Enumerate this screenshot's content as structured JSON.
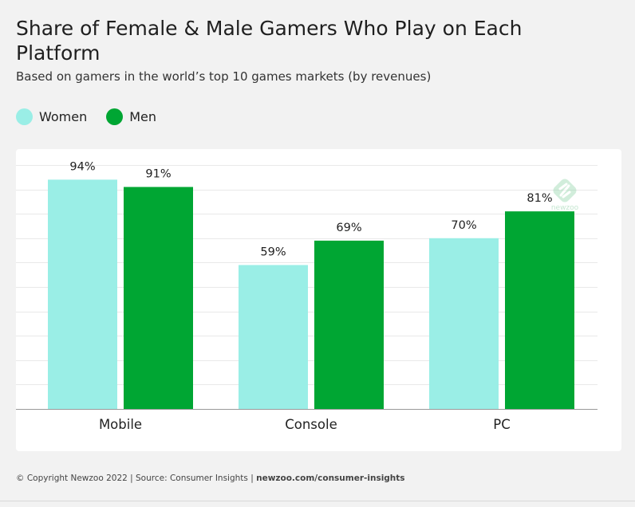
{
  "header": {
    "title": "Share of Female & Male Gamers Who Play on Each Platform",
    "subtitle": "Based on gamers in the world’s top 10 games markets (by revenues)"
  },
  "legend": {
    "items": [
      {
        "label": "Women",
        "color": "#9aeee6"
      },
      {
        "label": "Men",
        "color": "#00a633"
      }
    ]
  },
  "watermark": {
    "text": "newzoo",
    "icon": "newzoo-logo-icon"
  },
  "footer": {
    "copyright": "© Copyright Newzoo 2022 | Source: Consumer Insights | ",
    "link": "newzoo.com/consumer-insights"
  },
  "chart_data": {
    "type": "bar",
    "categories": [
      "Mobile",
      "Console",
      "PC"
    ],
    "series": [
      {
        "name": "Women",
        "values": [
          94,
          59,
          70
        ],
        "labels": [
          "94%",
          "59%",
          "70%"
        ],
        "color": "#9aeee6"
      },
      {
        "name": "Men",
        "values": [
          91,
          69,
          81
        ],
        "labels": [
          "91%",
          "69%",
          "81%"
        ],
        "color": "#00a633"
      }
    ],
    "ylim": [
      0,
      100
    ],
    "grid": true,
    "legend_position": "top-left"
  }
}
